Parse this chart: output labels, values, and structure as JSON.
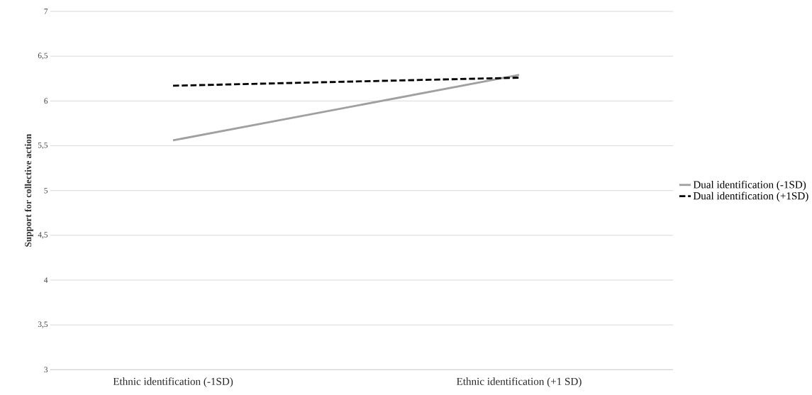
{
  "chart_data": {
    "type": "line",
    "ylabel": "Support for collective action",
    "categories": [
      "Ethnic identification (-1SD)",
      "Ethnic identification (+1 SD)"
    ],
    "series": [
      {
        "name": "Dual identification (-1SD)",
        "color": "#a0a0a0",
        "values": [
          5.56,
          6.29
        ],
        "line_style": "solid"
      },
      {
        "name": "Dual identification (+1SD)",
        "color": "#000000",
        "values": [
          6.17,
          6.26
        ],
        "line_style": "dashed"
      }
    ],
    "ylim": [
      3,
      7
    ],
    "yticks": [
      3,
      {
        "value": 3.5,
        "label": "3,5"
      },
      4,
      {
        "value": 4.5,
        "label": "4,5"
      },
      5,
      {
        "value": 5.5,
        "label": "5,5"
      },
      6,
      {
        "value": 6.5,
        "label": "6,5"
      },
      7
    ],
    "grid": "y",
    "legend": "right",
    "marker": "none"
  }
}
